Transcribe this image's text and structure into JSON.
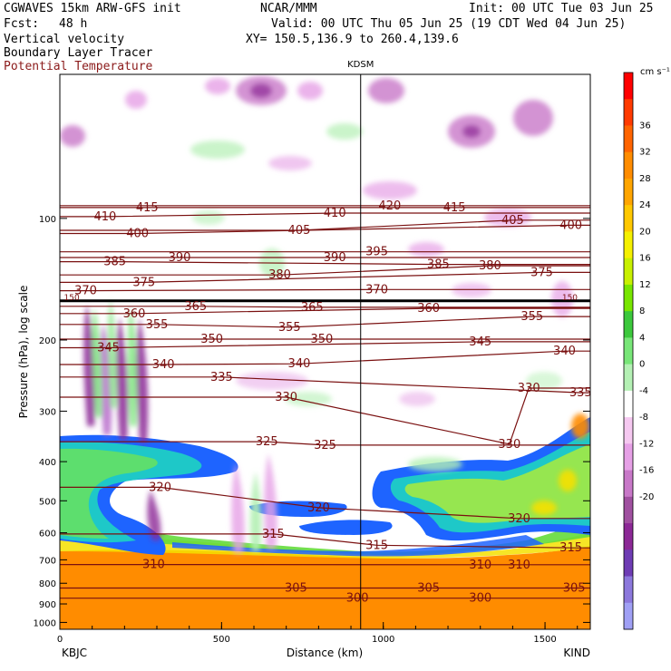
{
  "header": {
    "model": "CGWAVES 15km ARW-GFS init",
    "org": "NCAR/MMM",
    "init": "Init: 00 UTC Tue 03 Jun 25",
    "fcst_label": "Fcst:",
    "fcst_value": "48 h",
    "valid": "Valid: 00 UTC Thu 05 Jun 25 (19 CDT Wed 04 Jun 25)",
    "field1": "Vertical velocity",
    "field2": "Boundary Layer Tracer",
    "field3": "Potential Temperature",
    "xy": "XY= 150.5,136.9 to 260.4,139.6"
  },
  "colors": {
    "theta_contour": "#7a1010",
    "tropopause_line": "#000000"
  },
  "chart_data": {
    "type": "cross-section",
    "xlabel": "Distance (km)",
    "ylabel": "Pressure (hPa), log scale",
    "x_ticks": [
      0,
      500,
      1000,
      1500
    ],
    "xlim": [
      0,
      1640
    ],
    "y_ticks": [
      100,
      200,
      300,
      400,
      500,
      600,
      700,
      800,
      900,
      1000
    ],
    "ylim": [
      1040,
      44
    ],
    "y_scale": "log",
    "left_station": "KBJC",
    "right_station": "KIND",
    "mid_station": "KDSM",
    "mid_station_x_km": 930,
    "colorbar": {
      "unit": "cm s⁻¹",
      "labels": [
        36,
        32,
        28,
        24,
        20,
        16,
        12,
        8,
        4,
        0,
        -4,
        -8,
        -12,
        -16,
        -20
      ],
      "colors": [
        "#ff0000",
        "#ff3a00",
        "#ff6400",
        "#ff8c00",
        "#ffa500",
        "#ffc800",
        "#f5f000",
        "#c8f000",
        "#78e600",
        "#3cc83c",
        "#78e678",
        "#b4f0b4",
        "#ffffff",
        "#f5c8f0",
        "#e6a0e6",
        "#c878c8",
        "#a050a0",
        "#8c2896",
        "#6e3cb4",
        "#8c78dc",
        "#a0a0f5"
      ]
    },
    "theta_labels": [
      {
        "v": "415",
        "x": 270,
        "p": 94
      },
      {
        "v": "410",
        "x": 140,
        "p": 99
      },
      {
        "v": "410",
        "x": 850,
        "p": 97
      },
      {
        "v": "420",
        "x": 1020,
        "p": 93
      },
      {
        "v": "415",
        "x": 1220,
        "p": 94
      },
      {
        "v": "405",
        "x": 740,
        "p": 107
      },
      {
        "v": "405",
        "x": 1400,
        "p": 101
      },
      {
        "v": "400",
        "x": 240,
        "p": 109
      },
      {
        "v": "400",
        "x": 1580,
        "p": 104
      },
      {
        "v": "390",
        "x": 370,
        "p": 125
      },
      {
        "v": "390",
        "x": 850,
        "p": 125
      },
      {
        "v": "395",
        "x": 980,
        "p": 121
      },
      {
        "v": "385",
        "x": 170,
        "p": 128
      },
      {
        "v": "385",
        "x": 1170,
        "p": 130
      },
      {
        "v": "380",
        "x": 680,
        "p": 138
      },
      {
        "v": "380",
        "x": 1330,
        "p": 131
      },
      {
        "v": "375",
        "x": 260,
        "p": 144
      },
      {
        "v": "375",
        "x": 1490,
        "p": 136
      },
      {
        "v": "370",
        "x": 80,
        "p": 151
      },
      {
        "v": "370",
        "x": 980,
        "p": 150
      },
      {
        "v": "365",
        "x": 420,
        "p": 165
      },
      {
        "v": "365",
        "x": 780,
        "p": 166
      },
      {
        "v": "360",
        "x": 230,
        "p": 172
      },
      {
        "v": "360",
        "x": 1140,
        "p": 167
      },
      {
        "v": "355",
        "x": 300,
        "p": 183
      },
      {
        "v": "355",
        "x": 710,
        "p": 186
      },
      {
        "v": "355",
        "x": 1460,
        "p": 175
      },
      {
        "v": "350",
        "x": 470,
        "p": 199
      },
      {
        "v": "350",
        "x": 810,
        "p": 199
      },
      {
        "v": "345",
        "x": 150,
        "p": 209
      },
      {
        "v": "345",
        "x": 1300,
        "p": 202
      },
      {
        "v": "340",
        "x": 320,
        "p": 230
      },
      {
        "v": "340",
        "x": 740,
        "p": 229
      },
      {
        "v": "340",
        "x": 1560,
        "p": 213
      },
      {
        "v": "335",
        "x": 500,
        "p": 247
      },
      {
        "v": "335",
        "x": 1610,
        "p": 270
      },
      {
        "v": "330",
        "x": 700,
        "p": 277
      },
      {
        "v": "330",
        "x": 1450,
        "p": 263
      },
      {
        "v": "330",
        "x": 1390,
        "p": 362
      },
      {
        "v": "325",
        "x": 640,
        "p": 357
      },
      {
        "v": "325",
        "x": 820,
        "p": 364
      },
      {
        "v": "320",
        "x": 310,
        "p": 463
      },
      {
        "v": "320",
        "x": 800,
        "p": 520
      },
      {
        "v": "320",
        "x": 1420,
        "p": 553
      },
      {
        "v": "315",
        "x": 660,
        "p": 604
      },
      {
        "v": "315",
        "x": 980,
        "p": 644
      },
      {
        "v": "315",
        "x": 1580,
        "p": 654
      },
      {
        "v": "310",
        "x": 290,
        "p": 719
      },
      {
        "v": "310",
        "x": 1300,
        "p": 720
      },
      {
        "v": "310",
        "x": 1420,
        "p": 720
      },
      {
        "v": "305",
        "x": 730,
        "p": 822
      },
      {
        "v": "305",
        "x": 1140,
        "p": 822
      },
      {
        "v": "305",
        "x": 1590,
        "p": 822
      },
      {
        "v": "300",
        "x": 920,
        "p": 871
      },
      {
        "v": "300",
        "x": 1300,
        "p": 871
      }
    ],
    "tropopause_marks": [
      {
        "v": "150",
        "x": 20,
        "p": 160
      },
      {
        "v": "150",
        "x": 1560,
        "p": 160
      }
    ]
  }
}
